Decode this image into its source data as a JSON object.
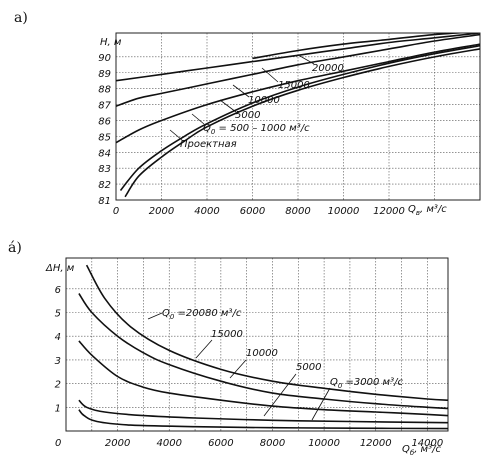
{
  "chart_data": [
    {
      "type": "line",
      "panel_label": "a)",
      "xlabel": "Q",
      "xlabel_sub": "в",
      "xlabel_unit": ", м³/с",
      "ylabel": "H, м",
      "xlim": [
        0,
        16000
      ],
      "ylim": [
        81,
        91.5
      ],
      "x_ticks": [
        0,
        2000,
        4000,
        6000,
        8000,
        10000,
        12000
      ],
      "y_ticks": [
        81,
        82,
        83,
        84,
        85,
        86,
        87,
        88,
        89,
        90
      ],
      "series": [
        {
          "name": "Проектная",
          "x": [
            400,
            1000,
            2000,
            3000,
            4000,
            6000,
            8000,
            10000,
            12000,
            14000,
            16000
          ],
          "y": [
            81.2,
            82.5,
            83.7,
            84.7,
            85.6,
            86.9,
            87.9,
            88.7,
            89.4,
            90.0,
            90.5
          ]
        },
        {
          "name": "Q0 = 500–1000 м³/с",
          "x": [
            200,
            1000,
            2000,
            3000,
            4000,
            6000,
            8000,
            10000,
            12000,
            14000,
            16000
          ],
          "y": [
            81.6,
            83.0,
            84.1,
            85.0,
            85.8,
            87.1,
            88.1,
            88.9,
            89.6,
            90.2,
            90.7
          ]
        },
        {
          "name": "5000",
          "x": [
            0,
            1000,
            2000,
            4000,
            6000,
            8000,
            10000,
            12000,
            14000,
            16000
          ],
          "y": [
            84.6,
            85.4,
            86.0,
            87.0,
            87.8,
            88.5,
            89.1,
            89.7,
            90.3,
            90.8
          ]
        },
        {
          "name": "10000",
          "x": [
            0,
            1000,
            2000,
            4000,
            6000,
            8000,
            10000,
            12000,
            14000,
            16000
          ],
          "y": [
            86.9,
            87.4,
            87.7,
            88.3,
            88.9,
            89.5,
            90.0,
            90.5,
            91.0,
            91.4
          ]
        },
        {
          "name": "15000",
          "x": [
            0,
            2000,
            4000,
            6000,
            8000,
            10000,
            12000,
            14000,
            16000
          ],
          "y": [
            88.5,
            88.9,
            89.3,
            89.7,
            90.1,
            90.5,
            90.9,
            91.2,
            91.5
          ]
        },
        {
          "name": "20000",
          "x": [
            6000,
            8000,
            10000,
            12000,
            14000,
            16000
          ],
          "y": [
            89.9,
            90.4,
            90.8,
            91.1,
            91.4,
            91.6
          ]
        }
      ],
      "annotations": [
        "20000",
        "15000",
        "10000",
        "5000",
        "Q",
        "0",
        " = 500 – 1000 м³/с",
        "Проектная"
      ]
    },
    {
      "type": "line",
      "panel_label": "á)",
      "xlabel": "Q",
      "xlabel_sub": "б",
      "xlabel_unit": ", м³/с",
      "ylabel": "ΔH, м",
      "origin_label": "0",
      "xlim": [
        0,
        14800
      ],
      "ylim": [
        0,
        7.3
      ],
      "x_ticks": [
        2000,
        4000,
        6000,
        8000,
        10000,
        12000,
        14000
      ],
      "y_ticks": [
        1,
        2,
        3,
        4,
        5,
        6
      ],
      "series": [
        {
          "name": "Q0 = 20080 м³/с",
          "x": [
            800,
            1500,
            2500,
            4000,
            6000,
            8000,
            10000,
            12000,
            14000,
            14800
          ],
          "y": [
            7.0,
            5.6,
            4.4,
            3.4,
            2.6,
            2.1,
            1.8,
            1.55,
            1.35,
            1.3
          ]
        },
        {
          "name": "15000",
          "x": [
            500,
            1000,
            2000,
            3000,
            4000,
            6000,
            8000,
            10000,
            12000,
            14000,
            14800
          ],
          "y": [
            5.8,
            5.0,
            4.0,
            3.3,
            2.8,
            2.1,
            1.6,
            1.35,
            1.15,
            1.0,
            0.95
          ]
        },
        {
          "name": "10000",
          "x": [
            500,
            1000,
            2000,
            3000,
            4000,
            6000,
            8000,
            10000,
            12000,
            14000,
            14800
          ],
          "y": [
            3.8,
            3.2,
            2.3,
            1.85,
            1.6,
            1.3,
            1.05,
            0.9,
            0.8,
            0.7,
            0.65
          ]
        },
        {
          "name": "5000",
          "x": [
            500,
            800,
            1500,
            3000,
            5000,
            8000,
            11000,
            14800
          ],
          "y": [
            1.3,
            1.0,
            0.8,
            0.65,
            0.55,
            0.45,
            0.4,
            0.35
          ]
        },
        {
          "name": "Q0 = 3000 м³/с",
          "x": [
            500,
            700,
            1200,
            2500,
            5000,
            8000,
            11000,
            14800
          ],
          "y": [
            0.9,
            0.65,
            0.4,
            0.25,
            0.18,
            0.14,
            0.12,
            0.1
          ]
        }
      ],
      "annotations": [
        "Q",
        "0",
        " =20080 м³/с",
        "15000",
        "10000",
        "5000",
        "Q",
        "0",
        " =3000 м³/с"
      ]
    }
  ]
}
